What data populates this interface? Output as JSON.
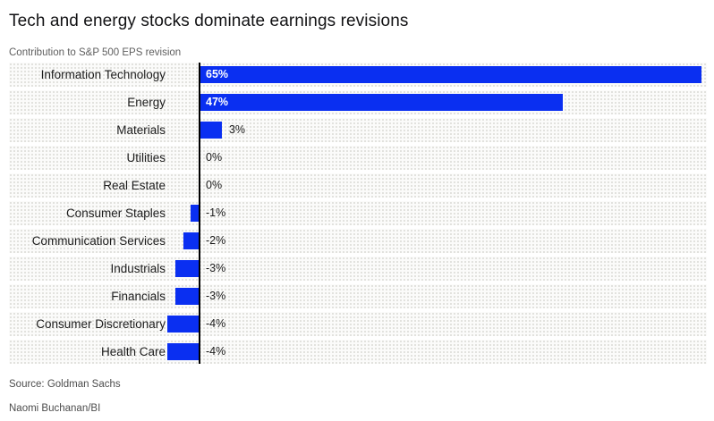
{
  "title": "Tech and energy stocks dominate earnings revisions",
  "subtitle": "Contribution to S&P 500 EPS revision",
  "source": "Source: Goldman Sachs",
  "byline": "Naomi Buchanan/BI",
  "colors": {
    "bar": "#0a2ff1",
    "axis": "#000000",
    "band_dot": "#d9d9d4"
  },
  "chart_data": {
    "type": "bar",
    "orientation": "horizontal",
    "title": "Tech and energy stocks dominate earnings revisions",
    "subtitle": "Contribution to S&P 500 EPS revision",
    "categories": [
      "Information Technology",
      "Energy",
      "Materials",
      "Utilities",
      "Real Estate",
      "Consumer Staples",
      "Communication Services",
      "Industrials",
      "Financials",
      "Consumer Discretionary",
      "Health Care"
    ],
    "values": [
      65,
      47,
      3,
      0,
      0,
      -1,
      -2,
      -3,
      -3,
      -4,
      -4
    ],
    "labels": [
      "65%",
      "47%",
      "3%",
      "0%",
      "0%",
      "-1%",
      "-2%",
      "-3%",
      "-3%",
      "-4%",
      "-4%"
    ],
    "value_suffix": "%",
    "xlim": [
      -5,
      66
    ],
    "grid": false,
    "legend": "none"
  }
}
